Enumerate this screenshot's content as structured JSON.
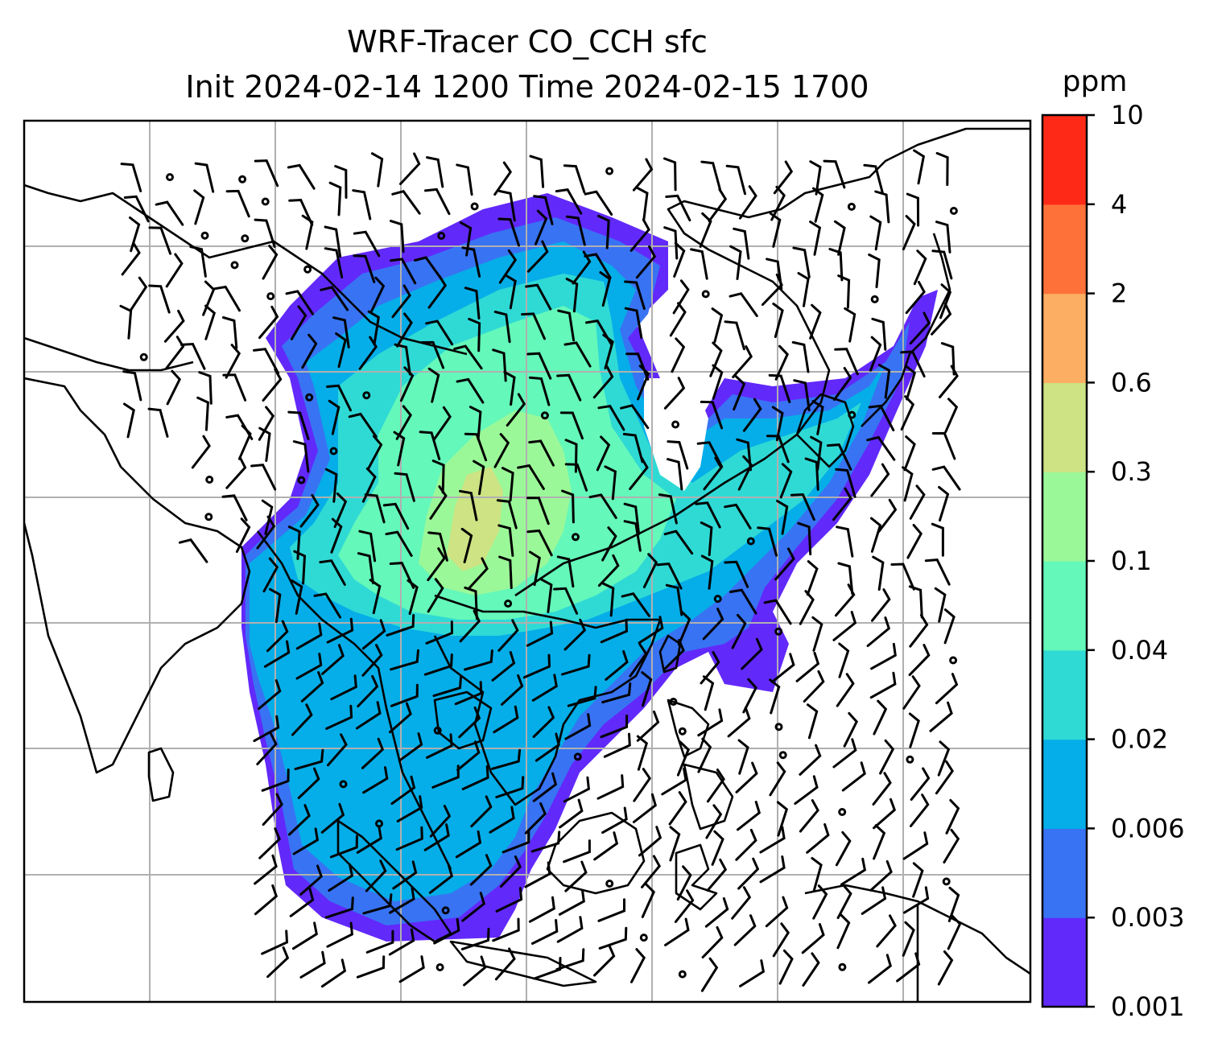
{
  "title": {
    "line1": "WRF-Tracer CO_CCH sfc",
    "line2": "Init 2024-02-14 1200 Time 2024-02-15 1700"
  },
  "colorbar": {
    "unit": "ppm",
    "levels": [
      "0.001",
      "0.003",
      "0.006",
      "0.02",
      "0.04",
      "0.1",
      "0.3",
      "0.6",
      "2",
      "4",
      "10"
    ],
    "colors": [
      "#6229fb",
      "#3873f3",
      "#05aee8",
      "#2fdad5",
      "#64f8ba",
      "#9bf898",
      "#cde384",
      "#fcae62",
      "#fe723a",
      "#fe2a17"
    ]
  },
  "map": {
    "gridlines": true,
    "coastlines": true,
    "wind_barbs": true,
    "field_colors": {
      "low": "#6229fb",
      "mid_low": "#3873f3",
      "mid": "#05aee8",
      "mid_high": "#2fdad5",
      "high": "#64f8ba",
      "peak": "#9bf898",
      "hot": "#cde384"
    }
  }
}
